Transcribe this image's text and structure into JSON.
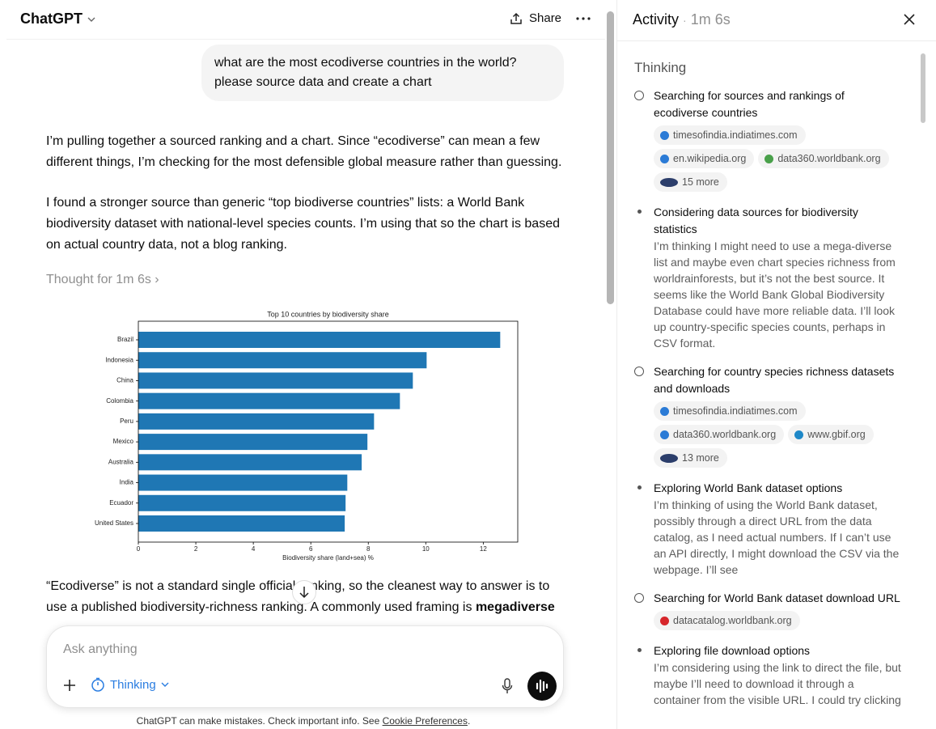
{
  "header": {
    "title": "ChatGPT",
    "share": "Share"
  },
  "chat": {
    "user_message": "what are the most ecodiverse countries in the world? please source data and create a chart",
    "paragraphs": [
      "I’m pulling together a sourced ranking and a chart. Since “ecodiverse” can mean a few different things, I’m checking for the most defensible global measure rather than guessing.",
      "I found a stronger source than generic “top biodiverse countries” lists: a World Bank biodiversity dataset with national-level species counts. I’m using that so the chart is based on actual country data, not a blog ranking."
    ],
    "thought": "Thought for 1m 6s",
    "after_chart": "“Ecodiverse” is not a standard single official ranking, so the cleanest way to answer is to use a published biodiversity-richness ranking. A commonly used framing is",
    "after_chart_bold": "megadiverse"
  },
  "chart_data": {
    "type": "bar",
    "orientation": "horizontal",
    "title": "Top 10 countries by biodiversity share",
    "xlabel": "Biodiversity share (land+sea) %",
    "categories": [
      "Brazil",
      "Indonesia",
      "China",
      "Colombia",
      "Peru",
      "Mexico",
      "Australia",
      "India",
      "Ecuador",
      "United States"
    ],
    "values": [
      12.59,
      10.03,
      9.55,
      9.1,
      8.2,
      7.97,
      7.77,
      7.27,
      7.21,
      7.18
    ],
    "color": "#1f77b4",
    "xlim": [
      0,
      13.2
    ],
    "xticks": [
      0,
      2,
      4,
      6,
      8,
      10,
      12
    ]
  },
  "composer": {
    "placeholder": "Ask anything",
    "mode": "Thinking"
  },
  "footer": {
    "text": "ChatGPT can make mistakes. Check important info. See",
    "link": "Cookie Preferences",
    "end": "."
  },
  "activity": {
    "title": "Activity",
    "separator": "·",
    "duration": "1m 6s",
    "section": "Thinking",
    "items": [
      {
        "title": "Searching for sources and rankings of ecodiverse countries",
        "sources": [
          "timesofindia.indiatimes.com",
          "en.wikipedia.org",
          "data360.worldbank.org"
        ],
        "more": "15 more"
      },
      {
        "title": "Considering data sources for biodiversity statistics",
        "body": "I’m thinking I might need to use a mega-diverse list and maybe even chart species richness from worldrainforests, but it’s not the best source. It seems like the World Bank Global Biodiversity Database could have more reliable data. I’ll look up country-specific species counts, perhaps in CSV format."
      },
      {
        "title": "Searching for country species richness datasets and downloads",
        "sources": [
          "timesofindia.indiatimes.com",
          "data360.worldbank.org",
          "www.gbif.org"
        ],
        "more": "13 more"
      },
      {
        "title": "Exploring World Bank dataset options",
        "body": "I’m thinking of using the World Bank dataset, possibly through a direct URL from the data catalog, as I need actual numbers. If I can’t use an API directly, I might download the CSV via the webpage. I’ll see"
      },
      {
        "title": "Searching for World Bank dataset download URL",
        "sources": [
          "datacatalog.worldbank.org"
        ]
      },
      {
        "title": "Exploring file download options",
        "body": "I’m considering using the link to direct the file, but maybe I’ll need to download it through a container from the visible URL. I could try clicking"
      }
    ]
  }
}
